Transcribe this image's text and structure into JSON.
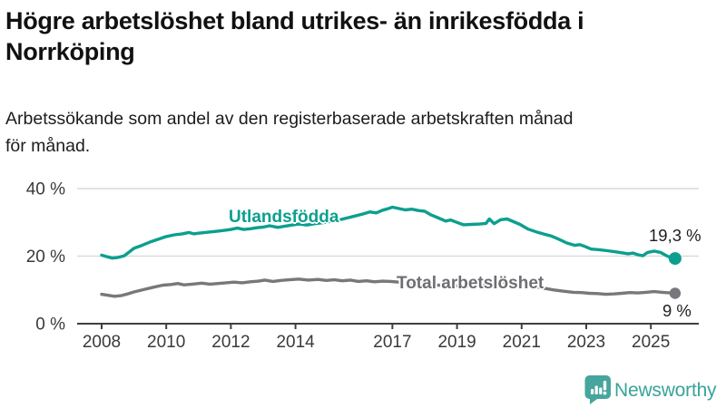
{
  "header": {
    "title": "Högre arbetslöshet bland utrikes- än inrikesfödda i Norrköping",
    "title_lines": [
      "Högre arbetslöshet bland utrikes- än inrikesfödda i",
      "Norrköping"
    ],
    "subtitle": "Arbetssökande som andel av den registerbaserade arbetskraften månad för månad.",
    "subtitle_lines": [
      "Arbetssökande som andel av den registerbaserade arbetskraften månad",
      "för månad."
    ]
  },
  "chart_data": {
    "type": "line",
    "unit": "%",
    "grid": "horizontal",
    "legend": "inline-labels",
    "grid_color": "#dadada",
    "axis_color": "#3f3f3f",
    "tick_text_color": "#3a3a3a",
    "x_axis": {
      "ticks": [
        2008,
        2010,
        2012,
        2014,
        2017,
        2019,
        2021,
        2023,
        2025
      ],
      "range": [
        2007.7,
        2026.3
      ]
    },
    "y_axis": {
      "ticks": [
        0,
        20,
        40
      ],
      "tick_labels": [
        "0 %",
        "20 %",
        "40 %"
      ],
      "range": [
        0,
        40
      ]
    },
    "series": [
      {
        "name": "Utlandsfödda",
        "color": "#0c9f8f",
        "end_label": "19,3 %",
        "end_value": 19.3,
        "points": [
          [
            2008.0,
            20.3
          ],
          [
            2008.17,
            19.8
          ],
          [
            2008.33,
            19.4
          ],
          [
            2008.5,
            19.6
          ],
          [
            2008.7,
            20.1
          ],
          [
            2008.85,
            21.2
          ],
          [
            2009.0,
            22.3
          ],
          [
            2009.25,
            23.2
          ],
          [
            2009.5,
            24.2
          ],
          [
            2009.75,
            25.0
          ],
          [
            2010.0,
            25.8
          ],
          [
            2010.25,
            26.3
          ],
          [
            2010.5,
            26.6
          ],
          [
            2010.7,
            27.0
          ],
          [
            2010.85,
            26.6
          ],
          [
            2011.0,
            26.8
          ],
          [
            2011.3,
            27.1
          ],
          [
            2011.6,
            27.4
          ],
          [
            2011.85,
            27.7
          ],
          [
            2012.0,
            27.9
          ],
          [
            2012.2,
            28.3
          ],
          [
            2012.4,
            27.9
          ],
          [
            2012.6,
            28.1
          ],
          [
            2012.8,
            28.4
          ],
          [
            2013.0,
            28.6
          ],
          [
            2013.2,
            29.0
          ],
          [
            2013.45,
            28.5
          ],
          [
            2013.7,
            28.9
          ],
          [
            2013.9,
            29.2
          ],
          [
            2014.1,
            29.5
          ],
          [
            2014.35,
            29.2
          ],
          [
            2014.6,
            29.6
          ],
          [
            2014.85,
            29.9
          ],
          [
            2015.1,
            30.3
          ],
          [
            2015.35,
            30.7
          ],
          [
            2015.6,
            31.3
          ],
          [
            2015.85,
            31.9
          ],
          [
            2016.1,
            32.5
          ],
          [
            2016.3,
            33.1
          ],
          [
            2016.5,
            32.8
          ],
          [
            2016.7,
            33.6
          ],
          [
            2016.85,
            34.0
          ],
          [
            2017.0,
            34.5
          ],
          [
            2017.2,
            34.1
          ],
          [
            2017.4,
            33.7
          ],
          [
            2017.6,
            33.9
          ],
          [
            2017.8,
            33.5
          ],
          [
            2018.0,
            33.3
          ],
          [
            2018.2,
            32.2
          ],
          [
            2018.4,
            31.4
          ],
          [
            2018.65,
            30.4
          ],
          [
            2018.8,
            30.7
          ],
          [
            2019.0,
            30.0
          ],
          [
            2019.2,
            29.3
          ],
          [
            2019.45,
            29.4
          ],
          [
            2019.7,
            29.5
          ],
          [
            2019.9,
            29.7
          ],
          [
            2020.0,
            31.0
          ],
          [
            2020.15,
            29.6
          ],
          [
            2020.35,
            30.8
          ],
          [
            2020.55,
            31.0
          ],
          [
            2020.75,
            30.2
          ],
          [
            2020.95,
            29.4
          ],
          [
            2021.2,
            28.0
          ],
          [
            2021.45,
            27.2
          ],
          [
            2021.7,
            26.5
          ],
          [
            2021.9,
            26.0
          ],
          [
            2022.1,
            25.2
          ],
          [
            2022.4,
            23.9
          ],
          [
            2022.65,
            23.2
          ],
          [
            2022.8,
            23.4
          ],
          [
            2022.95,
            22.9
          ],
          [
            2023.15,
            22.1
          ],
          [
            2023.4,
            21.9
          ],
          [
            2023.65,
            21.6
          ],
          [
            2023.9,
            21.3
          ],
          [
            2024.1,
            21.0
          ],
          [
            2024.3,
            20.7
          ],
          [
            2024.45,
            20.9
          ],
          [
            2024.6,
            20.4
          ],
          [
            2024.75,
            20.1
          ],
          [
            2024.9,
            21.1
          ],
          [
            2025.1,
            21.5
          ],
          [
            2025.3,
            21.1
          ],
          [
            2025.45,
            20.3
          ],
          [
            2025.6,
            19.6
          ],
          [
            2025.75,
            19.3
          ]
        ]
      },
      {
        "name": "Total arbetslöshet",
        "color": "#78787c",
        "end_label": "9 %",
        "end_value": 9.0,
        "points": [
          [
            2008.0,
            8.7
          ],
          [
            2008.2,
            8.4
          ],
          [
            2008.4,
            8.1
          ],
          [
            2008.6,
            8.3
          ],
          [
            2008.8,
            8.8
          ],
          [
            2009.0,
            9.4
          ],
          [
            2009.3,
            10.1
          ],
          [
            2009.6,
            10.8
          ],
          [
            2009.9,
            11.4
          ],
          [
            2010.15,
            11.6
          ],
          [
            2010.35,
            11.9
          ],
          [
            2010.55,
            11.5
          ],
          [
            2010.8,
            11.7
          ],
          [
            2011.1,
            12.0
          ],
          [
            2011.35,
            11.7
          ],
          [
            2011.6,
            11.9
          ],
          [
            2011.85,
            12.1
          ],
          [
            2012.1,
            12.3
          ],
          [
            2012.35,
            12.1
          ],
          [
            2012.6,
            12.4
          ],
          [
            2012.85,
            12.6
          ],
          [
            2013.05,
            12.9
          ],
          [
            2013.3,
            12.5
          ],
          [
            2013.55,
            12.8
          ],
          [
            2013.8,
            13.0
          ],
          [
            2014.1,
            13.2
          ],
          [
            2014.4,
            12.9
          ],
          [
            2014.7,
            13.1
          ],
          [
            2014.95,
            12.8
          ],
          [
            2015.2,
            13.0
          ],
          [
            2015.45,
            12.7
          ],
          [
            2015.7,
            12.9
          ],
          [
            2015.95,
            12.5
          ],
          [
            2016.2,
            12.7
          ],
          [
            2016.45,
            12.4
          ],
          [
            2016.7,
            12.6
          ],
          [
            2016.95,
            12.5
          ],
          [
            2017.2,
            12.3
          ],
          [
            2017.5,
            12.0
          ],
          [
            2017.8,
            11.8
          ],
          [
            2018.1,
            11.6
          ],
          [
            2018.4,
            11.4
          ],
          [
            2018.7,
            11.3
          ],
          [
            2019.0,
            11.2
          ],
          [
            2019.3,
            11.1
          ],
          [
            2019.6,
            11.2
          ],
          [
            2019.9,
            11.4
          ],
          [
            2020.2,
            12.0
          ],
          [
            2020.5,
            12.4
          ],
          [
            2020.8,
            12.1
          ],
          [
            2021.1,
            11.6
          ],
          [
            2021.4,
            11.0
          ],
          [
            2021.7,
            10.5
          ],
          [
            2022.0,
            10.0
          ],
          [
            2022.3,
            9.6
          ],
          [
            2022.6,
            9.3
          ],
          [
            2022.85,
            9.2
          ],
          [
            2023.1,
            9.0
          ],
          [
            2023.35,
            8.9
          ],
          [
            2023.6,
            8.7
          ],
          [
            2023.85,
            8.8
          ],
          [
            2024.1,
            9.0
          ],
          [
            2024.35,
            9.2
          ],
          [
            2024.6,
            9.1
          ],
          [
            2024.85,
            9.3
          ],
          [
            2025.1,
            9.5
          ],
          [
            2025.35,
            9.3
          ],
          [
            2025.6,
            9.1
          ],
          [
            2025.75,
            9.0
          ]
        ]
      }
    ]
  },
  "footer": {
    "brand": "Newsworthy",
    "brand_color": "#38a39a",
    "logo_icon": "newsworthy-bar-chart-bubble-icon",
    "logo_color": "#46a59d"
  }
}
